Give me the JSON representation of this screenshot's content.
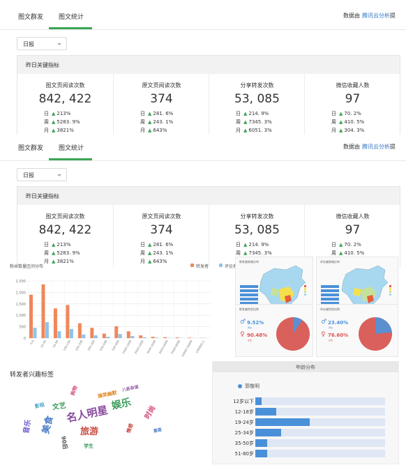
{
  "dashboard": {
    "tabs": [
      "图文群发",
      "图文统计"
    ],
    "active_tab": 1,
    "data_from_prefix": "数据由",
    "data_from_link": "腾讯云分析",
    "data_from_suffix": "提",
    "period_select": "日报",
    "section_title": "昨日关键指标",
    "metrics": [
      {
        "label": "图文页阅读次数",
        "value": "842, 422",
        "day_label": "日",
        "day": "213%",
        "week_label": "周",
        "week": "5283. 9%",
        "month_label": "月",
        "month": "3821%"
      },
      {
        "label": "原文页阅读次数",
        "value": "374",
        "day_label": "日",
        "day": "281. 6%",
        "week_label": "周",
        "week": "243. 1%",
        "month_label": "月",
        "month": "643%"
      },
      {
        "label": "分享转发次数",
        "value": "53, 085",
        "day_label": "日",
        "day": "214. 9%",
        "week_label": "周",
        "week": "7345. 3%",
        "month_label": "月",
        "month": "6051. 3%"
      },
      {
        "label": "微信收藏人数",
        "value": "97",
        "day_label": "日",
        "day": "70. 2%",
        "week_label": "周",
        "week": "410. 5%",
        "month_label": "月",
        "month": "304. 3%"
      }
    ]
  },
  "bar_chart": {
    "title": "粉丝数量区间分布",
    "legend": [
      {
        "name": "转发者",
        "color": "#f0875a"
      },
      {
        "name": "评论者",
        "color": "#8fc3e8"
      }
    ],
    "y_ticks": [
      "2,500",
      "2,000",
      "1,500",
      "1,000",
      "500",
      "0"
    ],
    "ylim": [
      0,
      2500
    ],
    "categories": [
      "0-9",
      "10-49",
      "50-99",
      "100-199",
      "200-299",
      "300-399",
      "400-499",
      "500-999",
      "1000-1999",
      "2000-2999",
      "3000-3999",
      "4000-4999",
      "5000-9999",
      "10000-19999",
      "19999以上"
    ],
    "series": [
      {
        "name": "转发者",
        "values": [
          1900,
          2350,
          1300,
          1450,
          650,
          450,
          200,
          520,
          300,
          120,
          60,
          40,
          30,
          20,
          10
        ]
      },
      {
        "name": "评论者",
        "values": [
          450,
          700,
          300,
          400,
          160,
          120,
          60,
          180,
          90,
          40,
          20,
          15,
          10,
          8,
          5
        ]
      }
    ]
  },
  "maps": [
    {
      "title": "转发者地域分布"
    },
    {
      "title": "评论者地域分布"
    }
  ],
  "pies": [
    {
      "title": "转发者性别比例",
      "male": "9.52%",
      "male_label": "男性",
      "female": "90.48%",
      "female_label": "女性",
      "male_fraction": 0.0952
    },
    {
      "title": "评论者性别比例",
      "male": "23.40%",
      "male_label": "男性",
      "female": "76.60%",
      "female_label": "女性",
      "male_fraction": 0.234
    }
  ],
  "word_cloud": {
    "title": "转发者兴趣标签",
    "words": [
      {
        "text": "名人明星",
        "size": 15,
        "color": "#8a4b9e",
        "rotate": -12
      },
      {
        "text": "娱乐",
        "size": 14,
        "color": "#3a9b5c",
        "rotate": -12
      },
      {
        "text": "旅游",
        "size": 13,
        "color": "#c94b3f",
        "rotate": 0
      },
      {
        "text": "美食",
        "size": 13,
        "color": "#4a7cc7",
        "rotate": -75
      },
      {
        "text": "文艺",
        "size": 10,
        "color": "#3a9b5c",
        "rotate": -8
      },
      {
        "text": "时尚",
        "size": 10,
        "color": "#d1477a",
        "rotate": -60
      },
      {
        "text": "音乐",
        "size": 10,
        "color": "#6a5acd",
        "rotate": -80
      },
      {
        "text": "搞笑幽默",
        "size": 7,
        "color": "#e08a2a",
        "rotate": -12
      },
      {
        "text": "八卦杂谈",
        "size": 6,
        "color": "#8a4b9e",
        "rotate": -12
      },
      {
        "text": "影视",
        "size": 7,
        "color": "#4aa8c7",
        "rotate": -12
      },
      {
        "text": "90后",
        "size": 8,
        "color": "#555555",
        "rotate": 80
      },
      {
        "text": "学生",
        "size": 7,
        "color": "#3a9b5c",
        "rotate": 0
      },
      {
        "text": "情感",
        "size": 7,
        "color": "#c94b3f",
        "rotate": -70
      },
      {
        "text": "购物",
        "size": 7,
        "color": "#d1477a",
        "rotate": -70
      },
      {
        "text": "星座",
        "size": 6,
        "color": "#4a7cc7",
        "rotate": -12
      }
    ]
  },
  "age_dist": {
    "title": "年龄分布",
    "legend": "郭敬明",
    "rows": [
      {
        "label": "12岁以下",
        "value": 0.05
      },
      {
        "label": "12-18岁",
        "value": 0.16
      },
      {
        "label": "19-24岁",
        "value": 0.42
      },
      {
        "label": "25-34岁",
        "value": 0.2
      },
      {
        "label": "35-50岁",
        "value": 0.09
      },
      {
        "label": "51-80岁",
        "value": 0.09
      }
    ]
  }
}
